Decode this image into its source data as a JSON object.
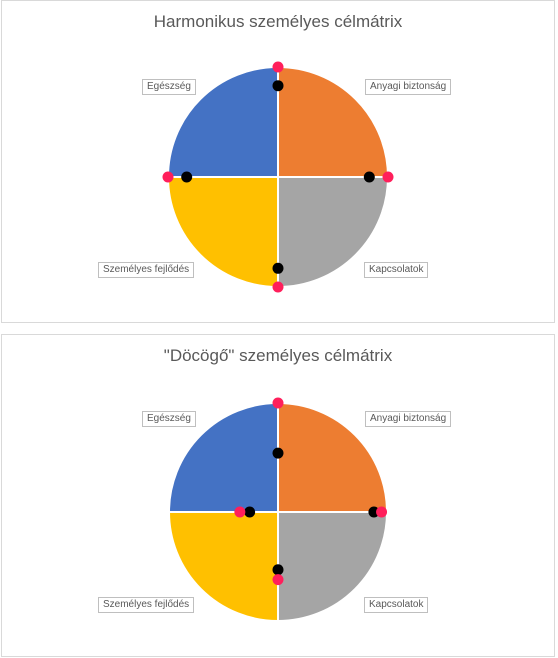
{
  "chart_data": [
    {
      "type": "pie",
      "title": "Harmonikus személyes célmátrix",
      "categories": [
        "Anyagi biztonság",
        "Kapcsolatok",
        "Személyes fejlődés",
        "Egészség"
      ],
      "values": [
        25,
        25,
        25,
        25
      ],
      "colors": [
        "#ED7D31",
        "#A5A5A5",
        "#FFC000",
        "#4472C4"
      ],
      "markers": [
        {
          "series": "black",
          "color": "#000000",
          "axis": "Anyagi biztonság",
          "value": 0.83
        },
        {
          "series": "black",
          "color": "#000000",
          "axis": "Kapcsolatok",
          "value": 0.83
        },
        {
          "series": "black",
          "color": "#000000",
          "axis": "Személyes fejlődés",
          "value": 0.83
        },
        {
          "series": "black",
          "color": "#000000",
          "axis": "Egészség",
          "value": 0.83
        },
        {
          "series": "pink",
          "color": "#FF1F5B",
          "axis": "Anyagi biztonság",
          "value": 1.0
        },
        {
          "series": "pink",
          "color": "#FF1F5B",
          "axis": "Kapcsolatok",
          "value": 1.0
        },
        {
          "series": "pink",
          "color": "#FF1F5B",
          "axis": "Személyes fejlődés",
          "value": 1.0
        },
        {
          "series": "pink",
          "color": "#FF1F5B",
          "axis": "Egészség",
          "value": 1.0
        }
      ]
    },
    {
      "type": "pie",
      "title": "\"Döcögő\" személyes célmátrix",
      "categories": [
        "Anyagi biztonság",
        "Kapcsolatok",
        "Személyes fejlődés",
        "Egészség"
      ],
      "values": [
        25,
        25,
        25,
        25
      ],
      "colors": [
        "#ED7D31",
        "#A5A5A5",
        "#FFC000",
        "#4472C4"
      ],
      "markers": [
        {
          "series": "black",
          "color": "#000000",
          "axis": "Anyagi biztonság",
          "value": 0.54
        },
        {
          "series": "black",
          "color": "#000000",
          "axis": "Kapcsolatok",
          "value": 0.88
        },
        {
          "series": "black",
          "color": "#000000",
          "axis": "Személyes fejlődés",
          "value": 0.53
        },
        {
          "series": "black",
          "color": "#000000",
          "axis": "Egészség",
          "value": 0.26
        },
        {
          "series": "pink",
          "color": "#FF1F5B",
          "axis": "Anyagi biztonság",
          "value": 1.0
        },
        {
          "series": "pink",
          "color": "#FF1F5B",
          "axis": "Kapcsolatok",
          "value": 0.95
        },
        {
          "series": "pink",
          "color": "#FF1F5B",
          "axis": "Személyes fejlődés",
          "value": 0.62
        },
        {
          "series": "pink",
          "color": "#FF1F5B",
          "axis": "Egészség",
          "value": 0.35
        }
      ]
    }
  ]
}
